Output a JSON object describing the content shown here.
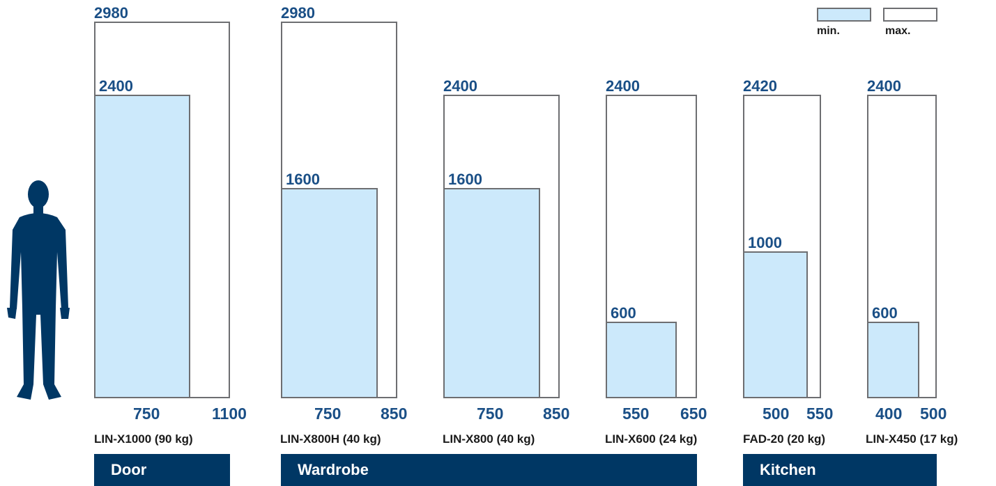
{
  "legend": {
    "min_label": "min.",
    "max_label": "max.",
    "min_color": "#cce9fb",
    "max_color": "#ffffff"
  },
  "products": [
    {
      "model": "LIN-X1000 (90 kg)",
      "height_max": "2980",
      "height_min": "2400",
      "width_min": "750",
      "width_max": "1100"
    },
    {
      "model": "LIN-X800H (40 kg)",
      "height_max": "2980",
      "height_min": "1600",
      "width_min": "750",
      "width_max": "850"
    },
    {
      "model": "LIN-X800 (40 kg)",
      "height_max": "2400",
      "height_min": "1600",
      "width_min": "750",
      "width_max": "850"
    },
    {
      "model": "LIN-X600 (24 kg)",
      "height_max": "2400",
      "height_min": "600",
      "width_min": "550",
      "width_max": "650"
    },
    {
      "model": "FAD-20 (20 kg)",
      "height_max": "2420",
      "height_min": "1000",
      "width_min": "500",
      "width_max": "550"
    },
    {
      "model": "LIN-X450 (17 kg)",
      "height_max": "2400",
      "height_min": "600",
      "width_min": "400",
      "width_max": "500"
    }
  ],
  "categories": [
    "Door",
    "Wardrobe",
    "Kitchen"
  ],
  "icons": {
    "person": "person-silhouette-icon"
  },
  "colors": {
    "accent": "#1a4f86",
    "band": "#003764",
    "fill_min": "#cce9fb",
    "outline": "#6d6e71"
  }
}
